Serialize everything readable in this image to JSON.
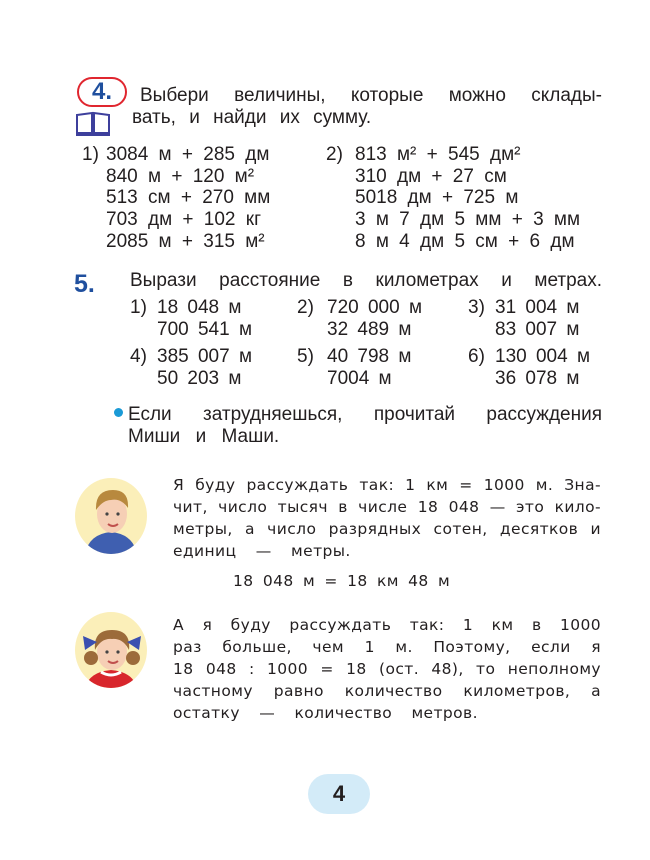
{
  "task4": {
    "number": "4.",
    "icon": "book-icon",
    "lines": [
      "Выбери величины, которые можно склады-",
      "вать, и найди их сумму."
    ],
    "col1_label": "1)",
    "col1": [
      "3084 м + 285 дм",
      "840 м + 120 м²",
      "513 см + 270 мм",
      "703 дм + 102 кг",
      "2085 м + 315 м²"
    ],
    "col2_label": "2)",
    "col2": [
      "813 м² + 545 дм²",
      "310 дм + 27 см",
      "5018 дм + 725 м",
      "3 м 7 дм 5 мм + 3 мм",
      "8 м 4 дм 5 см + 6 дм"
    ]
  },
  "task5": {
    "number": "5.",
    "title": "Вырази расстояние в километрах и метрах.",
    "items": [
      {
        "label": "1)",
        "values": [
          "18 048 м",
          "700 541 м"
        ]
      },
      {
        "label": "2)",
        "values": [
          "720 000 м",
          "32 489 м"
        ]
      },
      {
        "label": "3)",
        "values": [
          "31 004 м",
          "83 007 м"
        ]
      },
      {
        "label": "4)",
        "values": [
          "385 007 м",
          "50 203 м"
        ]
      },
      {
        "label": "5)",
        "values": [
          "40 798 м",
          "7004 м"
        ]
      },
      {
        "label": "6)",
        "values": [
          "130 004 м",
          "36 078 м"
        ]
      }
    ],
    "hint": [
      "Если затрудняешься, прочитай рассуждения",
      "Миши и Маши."
    ]
  },
  "misha": {
    "lines": [
      "Я буду рассуждать так: 1 км = 1000 м. Зна-",
      "чит, число тысяч в числе 18 048 — это кило-",
      "метры, а число разрядных сотен, десятков и",
      "единиц — метры."
    ],
    "equation": "18 048 м = 18 км 48 м"
  },
  "masha": {
    "lines": [
      "А я буду рассуждать так: 1 км в 1000",
      "раз больше, чем 1 м. Поэтому, если я",
      "18 048 : 1000 = 18 (ост. 48), то неполному",
      "частному равно количество километров, а",
      "остатку — количество метров."
    ]
  },
  "page_number": "4",
  "colors": {
    "accent_blue": "#1f4f9e",
    "accent_red": "#e0262f",
    "bullet": "#1a9ad6",
    "pill": "#d3ebf8"
  }
}
